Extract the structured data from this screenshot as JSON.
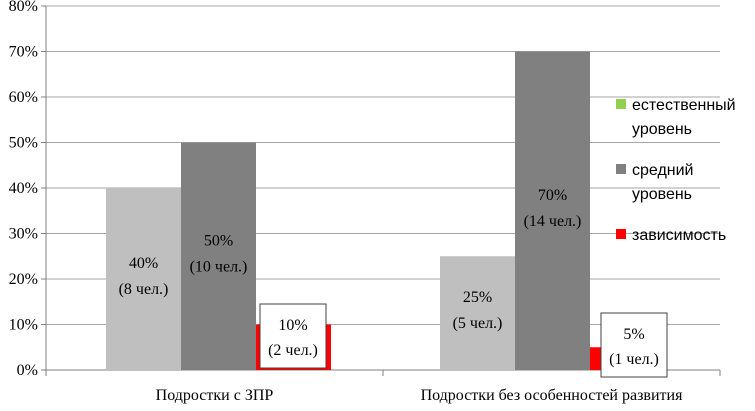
{
  "chart_data": {
    "type": "bar",
    "categories": [
      "Подростки с ЗПР",
      "Подростки без особенностей развития"
    ],
    "series": [
      {
        "name": "естественный уровень",
        "color": "#bfbfbf",
        "values": [
          40,
          25
        ],
        "labels": [
          [
            "40%",
            "(8 чел.)"
          ],
          [
            "25%",
            "(5 чел.)"
          ]
        ]
      },
      {
        "name": "средний уровень",
        "color": "#808080",
        "values": [
          50,
          70
        ],
        "labels": [
          [
            "50%",
            "(10 чел.)"
          ],
          [
            "70%",
            "(14 чел.)"
          ]
        ]
      },
      {
        "name": "зависимость",
        "color": "#ff0000",
        "values": [
          10,
          5
        ],
        "labels": [
          [
            "10%",
            "(2 чел.)"
          ],
          [
            "5%",
            "(1 чел.)"
          ]
        ]
      }
    ],
    "legend_entries": [
      {
        "lines": [
          "естественный",
          "уровень"
        ],
        "color": "#92d050"
      },
      {
        "lines": [
          "средний",
          "уровень"
        ],
        "color": "#808080"
      },
      {
        "lines": [
          "зависимость"
        ],
        "color": "#ff0000"
      }
    ],
    "y_ticks": [
      "0%",
      "10%",
      "20%",
      "30%",
      "40%",
      "50%",
      "60%",
      "70%",
      "80%"
    ],
    "ylim": [
      0,
      80
    ],
    "grid": true,
    "legend_position": "right",
    "title": "",
    "xlabel": "",
    "ylabel": ""
  }
}
